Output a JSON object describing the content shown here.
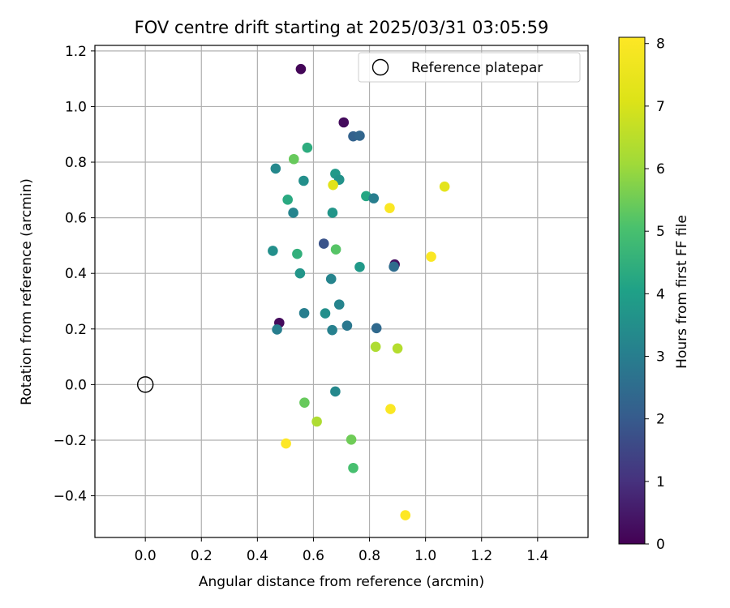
{
  "chart_data": {
    "type": "scatter",
    "title": "FOV centre drift starting at 2025/03/31 03:05:59",
    "xlabel": "Angular distance from reference (arcmin)",
    "ylabel": "Rotation from reference (arcmin)",
    "xlim": [
      -0.18,
      1.58
    ],
    "ylim": [
      -0.55,
      1.22
    ],
    "xticks": [
      0.0,
      0.2,
      0.4,
      0.6,
      0.8,
      1.0,
      1.2,
      1.4
    ],
    "xtick_labels": [
      "0.0",
      "0.2",
      "0.4",
      "0.6",
      "0.8",
      "1.0",
      "1.2",
      "1.4"
    ],
    "yticks": [
      -0.4,
      -0.2,
      0.0,
      0.2,
      0.4,
      0.6,
      0.8,
      1.0,
      1.2
    ],
    "ytick_labels": [
      "−0.4",
      "−0.2",
      "0.0",
      "0.2",
      "0.4",
      "0.6",
      "0.8",
      "1.0",
      "1.2"
    ],
    "grid": true,
    "colormap": "viridis",
    "colorbar": {
      "label": "Hours from first FF file",
      "min": 0,
      "max": 8.1,
      "ticks": [
        0,
        1,
        2,
        3,
        4,
        5,
        6,
        7,
        8
      ],
      "tick_labels": [
        "0",
        "1",
        "2",
        "3",
        "4",
        "5",
        "6",
        "7",
        "8"
      ]
    },
    "legend": {
      "position": "top-right",
      "entries": [
        {
          "label": "Reference platepar",
          "marker": "open-circle"
        }
      ]
    },
    "reference_point": {
      "x": 0.0,
      "y": 0.0
    },
    "points": [
      {
        "x": 0.555,
        "y": 1.135,
        "c": 0.1
      },
      {
        "x": 0.708,
        "y": 0.943,
        "c": 0.2
      },
      {
        "x": 0.742,
        "y": 0.893,
        "c": 2.2
      },
      {
        "x": 0.765,
        "y": 0.895,
        "c": 2.3
      },
      {
        "x": 0.578,
        "y": 0.852,
        "c": 4.4
      },
      {
        "x": 0.53,
        "y": 0.811,
        "c": 5.4
      },
      {
        "x": 0.465,
        "y": 0.777,
        "c": 3.3
      },
      {
        "x": 0.565,
        "y": 0.733,
        "c": 3.5
      },
      {
        "x": 0.678,
        "y": 0.758,
        "c": 3.8
      },
      {
        "x": 0.692,
        "y": 0.737,
        "c": 3.6
      },
      {
        "x": 0.67,
        "y": 0.718,
        "c": 7.2
      },
      {
        "x": 1.068,
        "y": 0.712,
        "c": 7.3
      },
      {
        "x": 0.508,
        "y": 0.665,
        "c": 4.3
      },
      {
        "x": 0.788,
        "y": 0.678,
        "c": 4.2
      },
      {
        "x": 0.815,
        "y": 0.67,
        "c": 3.0
      },
      {
        "x": 0.528,
        "y": 0.618,
        "c": 3.2
      },
      {
        "x": 0.668,
        "y": 0.618,
        "c": 3.7
      },
      {
        "x": 0.872,
        "y": 0.635,
        "c": 8.0
      },
      {
        "x": 0.637,
        "y": 0.507,
        "c": 1.8
      },
      {
        "x": 0.455,
        "y": 0.481,
        "c": 3.5
      },
      {
        "x": 0.542,
        "y": 0.47,
        "c": 4.5
      },
      {
        "x": 0.68,
        "y": 0.486,
        "c": 5.2
      },
      {
        "x": 1.02,
        "y": 0.46,
        "c": 8.0
      },
      {
        "x": 0.89,
        "y": 0.432,
        "c": 0.3
      },
      {
        "x": 0.887,
        "y": 0.424,
        "c": 2.5
      },
      {
        "x": 0.765,
        "y": 0.423,
        "c": 3.8
      },
      {
        "x": 0.552,
        "y": 0.4,
        "c": 3.7
      },
      {
        "x": 0.663,
        "y": 0.38,
        "c": 3.2
      },
      {
        "x": 0.478,
        "y": 0.222,
        "c": 0.2
      },
      {
        "x": 0.567,
        "y": 0.257,
        "c": 3.0
      },
      {
        "x": 0.642,
        "y": 0.256,
        "c": 3.5
      },
      {
        "x": 0.692,
        "y": 0.288,
        "c": 3.2
      },
      {
        "x": 0.47,
        "y": 0.198,
        "c": 3.0
      },
      {
        "x": 0.667,
        "y": 0.196,
        "c": 3.1
      },
      {
        "x": 0.72,
        "y": 0.212,
        "c": 2.8
      },
      {
        "x": 0.825,
        "y": 0.203,
        "c": 2.4
      },
      {
        "x": 0.822,
        "y": 0.136,
        "c": 6.3
      },
      {
        "x": 0.9,
        "y": 0.13,
        "c": 6.4
      },
      {
        "x": 0.678,
        "y": -0.025,
        "c": 3.3
      },
      {
        "x": 0.568,
        "y": -0.065,
        "c": 5.4
      },
      {
        "x": 0.875,
        "y": -0.088,
        "c": 8.0
      },
      {
        "x": 0.612,
        "y": -0.133,
        "c": 6.3
      },
      {
        "x": 0.735,
        "y": -0.198,
        "c": 5.5
      },
      {
        "x": 0.502,
        "y": -0.212,
        "c": 8.1
      },
      {
        "x": 0.742,
        "y": -0.3,
        "c": 5.0
      },
      {
        "x": 0.928,
        "y": -0.47,
        "c": 8.1
      }
    ]
  }
}
